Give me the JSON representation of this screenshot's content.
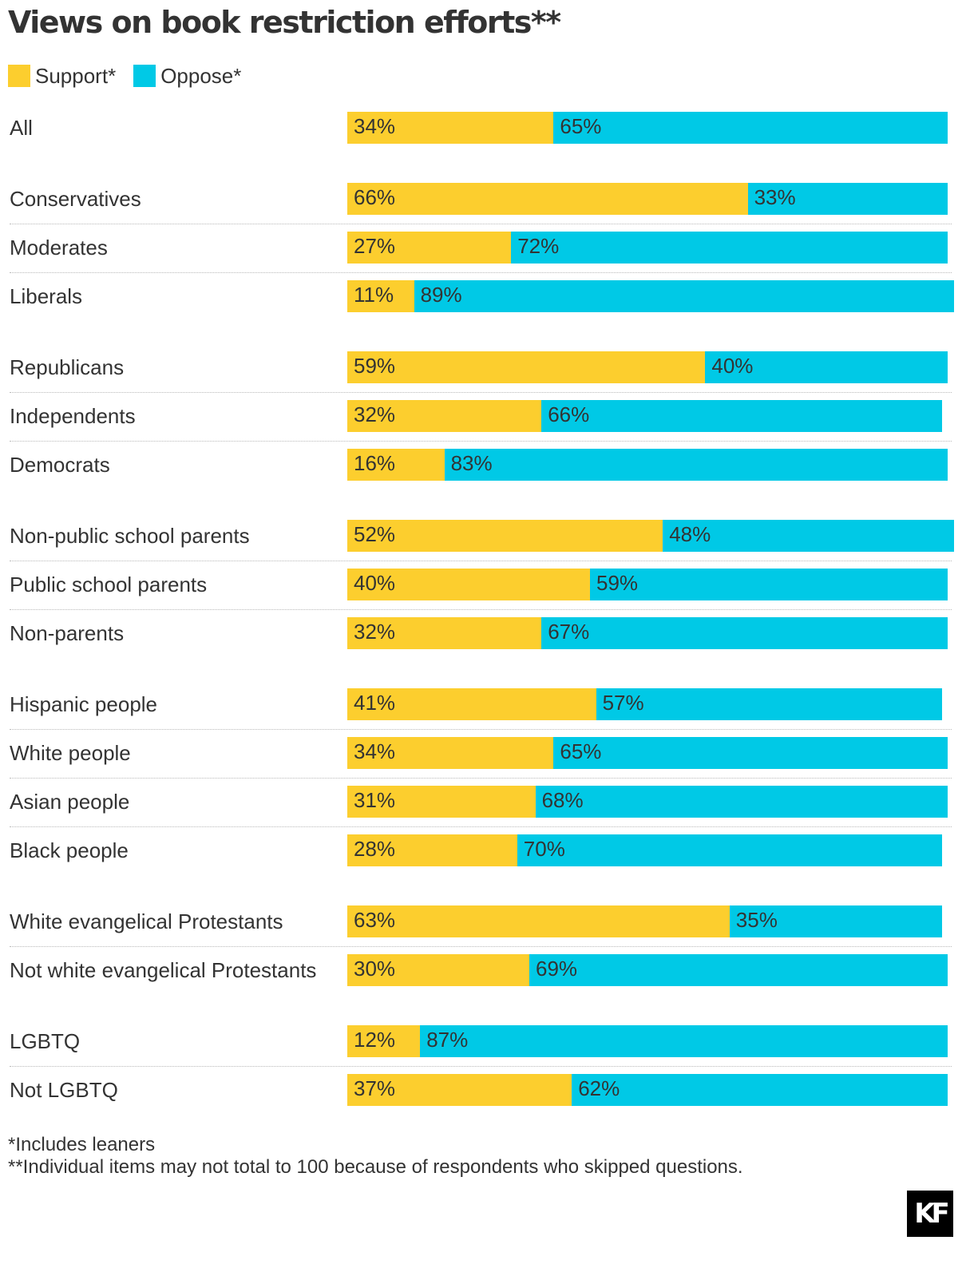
{
  "chart_data": {
    "type": "bar",
    "orientation": "horizontal",
    "stacked": true,
    "title": "Views on book restriction efforts**",
    "xlim": [
      0,
      100
    ],
    "legend_position": "top-left",
    "grid": false,
    "series": [
      {
        "name": "Support*",
        "color": "#fcce2e",
        "key": "support"
      },
      {
        "name": "Oppose*",
        "color": "#00c9e6",
        "key": "oppose"
      }
    ],
    "groups": [
      {
        "rows": [
          {
            "label": "All",
            "support": 34,
            "oppose": 65
          }
        ]
      },
      {
        "rows": [
          {
            "label": "Conservatives",
            "support": 66,
            "oppose": 33
          },
          {
            "label": "Moderates",
            "support": 27,
            "oppose": 72
          },
          {
            "label": "Liberals",
            "support": 11,
            "oppose": 89
          }
        ]
      },
      {
        "rows": [
          {
            "label": "Republicans",
            "support": 59,
            "oppose": 40
          },
          {
            "label": "Independents",
            "support": 32,
            "oppose": 66
          },
          {
            "label": "Democrats",
            "support": 16,
            "oppose": 83
          }
        ]
      },
      {
        "rows": [
          {
            "label": "Non-public school parents",
            "support": 52,
            "oppose": 48
          },
          {
            "label": "Public school parents",
            "support": 40,
            "oppose": 59
          },
          {
            "label": "Non-parents",
            "support": 32,
            "oppose": 67
          }
        ]
      },
      {
        "rows": [
          {
            "label": "Hispanic people",
            "support": 41,
            "oppose": 57
          },
          {
            "label": "White people",
            "support": 34,
            "oppose": 65
          },
          {
            "label": "Asian people",
            "support": 31,
            "oppose": 68
          },
          {
            "label": "Black people",
            "support": 28,
            "oppose": 70
          }
        ]
      },
      {
        "rows": [
          {
            "label": "White evangelical Protestants",
            "support": 63,
            "oppose": 35
          },
          {
            "label": "Not white evangelical Protestants",
            "support": 30,
            "oppose": 69
          }
        ]
      },
      {
        "rows": [
          {
            "label": "LGBTQ",
            "support": 12,
            "oppose": 87
          },
          {
            "label": "Not LGBTQ",
            "support": 37,
            "oppose": 62
          }
        ]
      }
    ]
  },
  "notes": [
    "*Includes leaners",
    "**Individual items may not total to 100 because of respondents who skipped questions."
  ],
  "logo": {
    "text": "KF",
    "icon": "kff-logo-icon"
  }
}
